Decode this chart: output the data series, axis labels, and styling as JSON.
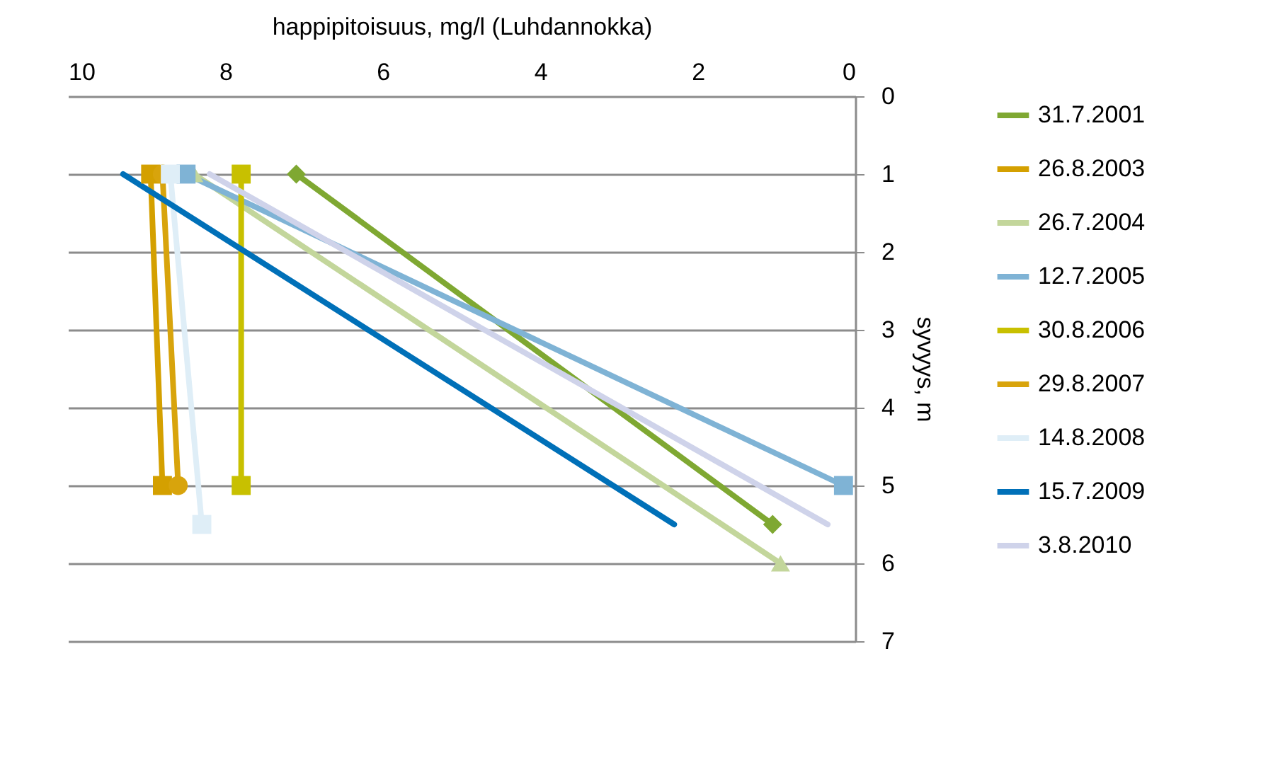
{
  "chart_data": {
    "type": "line",
    "xlabel": "happipitoisuus, mg/l (Luhdannokka)",
    "ylabel": "syvyys, m",
    "xlim": [
      10,
      0
    ],
    "xticks": [
      10,
      8,
      6,
      4,
      2,
      0
    ],
    "ylim": [
      7,
      0
    ],
    "yticks": [
      0,
      1,
      2,
      3,
      4,
      5,
      6,
      7
    ],
    "grid": "y",
    "legend": "right",
    "series": [
      {
        "name": "31.7.2001",
        "color": "#7fa832",
        "marker": "diamond",
        "x": [
          7.1,
          1.05
        ],
        "values": [
          1,
          5.5
        ]
      },
      {
        "name": "26.8.2003",
        "color": "#d4a000",
        "marker": "square",
        "x": [
          8.95,
          8.8
        ],
        "values": [
          1,
          5
        ]
      },
      {
        "name": "26.7.2004",
        "color": "#c3d69b",
        "marker": "triangle",
        "x": [
          8.4,
          0.95
        ],
        "values": [
          1,
          6
        ]
      },
      {
        "name": "12.7.2005",
        "color": "#7fb3d5",
        "marker": "square",
        "x": [
          8.5,
          0.15
        ],
        "values": [
          1,
          5
        ]
      },
      {
        "name": "30.8.2006",
        "color": "#c8c000",
        "marker": "square",
        "x": [
          7.8,
          7.8
        ],
        "values": [
          1,
          5
        ]
      },
      {
        "name": "29.8.2007",
        "color": "#d8a40c",
        "marker": "circle",
        "x": [
          8.8,
          8.6
        ],
        "values": [
          1,
          5
        ]
      },
      {
        "name": "14.8.2008",
        "color": "#dfeef7",
        "marker": "square",
        "x": [
          8.7,
          8.3
        ],
        "values": [
          1,
          5.5
        ]
      },
      {
        "name": "15.7.2009",
        "color": "#0070b8",
        "marker": "none",
        "x": [
          9.3,
          2.3
        ],
        "values": [
          1,
          5.5
        ]
      },
      {
        "name": "3.8.2010",
        "color": "#cfd3ea",
        "marker": "none",
        "x": [
          8.2,
          0.35
        ],
        "values": [
          1,
          5.5
        ]
      }
    ]
  }
}
